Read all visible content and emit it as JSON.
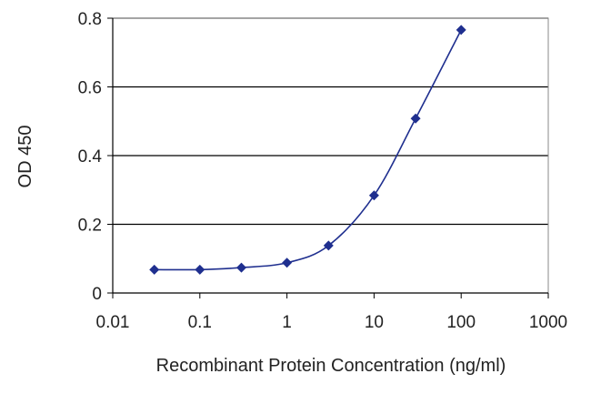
{
  "chart_data": {
    "type": "line",
    "title": "",
    "xlabel": "Recombinant Protein Concentration (ng/ml)",
    "ylabel": "OD 450",
    "x_scale": "log",
    "xlim": [
      0.01,
      1000
    ],
    "ylim": [
      0,
      0.8
    ],
    "x_ticks": [
      "0.01",
      "0.1",
      "1",
      "10",
      "100",
      "1000"
    ],
    "y_ticks": [
      "0",
      "0.2",
      "0.4",
      "0.6",
      "0.8"
    ],
    "grid": "horizontal",
    "legend": "none",
    "series": [
      {
        "color": "#1f2f8f",
        "points": [
          {
            "x": 0.03,
            "y": 0.068
          },
          {
            "x": 0.1,
            "y": 0.068
          },
          {
            "x": 0.3,
            "y": 0.074
          },
          {
            "x": 1,
            "y": 0.088
          },
          {
            "x": 3,
            "y": 0.138
          },
          {
            "x": 10,
            "y": 0.284
          },
          {
            "x": 30,
            "y": 0.508
          },
          {
            "x": 100,
            "y": 0.766
          }
        ]
      }
    ]
  }
}
